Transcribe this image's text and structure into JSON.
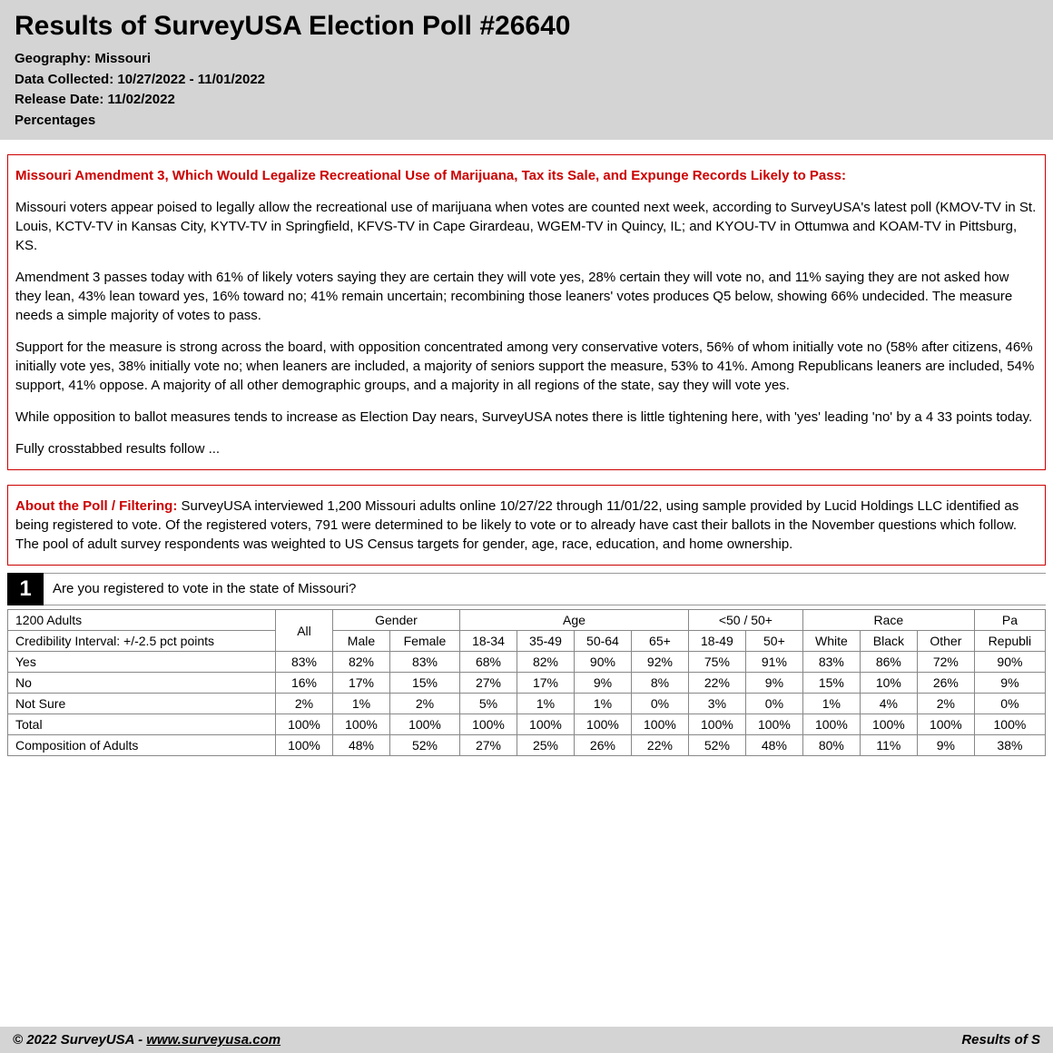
{
  "header": {
    "title": "Results of SurveyUSA Election Poll #26640",
    "geography": "Geography: Missouri",
    "collected": "Data Collected: 10/27/2022 - 11/01/2022",
    "release": "Release Date: 11/02/2022",
    "percentages": "Percentages"
  },
  "summary": {
    "headline": "Missouri Amendment 3, Which Would Legalize Recreational Use of Marijuana, Tax its Sale, and Expunge Records Likely to Pass:",
    "p1": "Missouri voters appear poised to legally allow the recreational use of marijuana when votes are counted next week, according to SurveyUSA's latest poll (KMOV-TV in St. Louis, KCTV-TV in Kansas City, KYTV-TV in Springfield, KFVS-TV in Cape Girardeau, WGEM-TV in Quincy, IL; and KYOU-TV in Ottumwa and KOAM-TV in Pittsburg, KS.",
    "p2": "Amendment 3 passes today with 61% of likely voters saying they are certain they will vote yes, 28% certain they will vote no, and 11% saying they are not asked how they lean, 43% lean toward yes, 16% toward no; 41% remain uncertain; recombining those leaners' votes produces Q5 below, showing 66% undecided. The measure needs a simple majority of votes to pass.",
    "p3": "Support for the measure is strong across the board, with opposition concentrated among very conservative voters, 56% of whom initially vote no (58% after citizens, 46% initially vote yes, 38% initially vote no; when leaners are included, a majority of seniors support the measure, 53% to 41%. Among Republicans leaners are included, 54% support, 41% oppose. A majority of all other demographic groups, and a majority in all regions of the state, say they will vote yes.",
    "p4": "While opposition to ballot measures tends to increase as Election Day nears, SurveyUSA notes there is little tightening here, with 'yes' leading 'no' by a 4 33 points today.",
    "p5": "Fully crosstabbed results follow ..."
  },
  "about": {
    "label": "About the Poll / Filtering: ",
    "text": "SurveyUSA interviewed 1,200 Missouri adults online 10/27/22 through 11/01/22, using sample provided by Lucid Holdings LLC identified as being registered to vote. Of the registered voters, 791 were determined to be likely to vote or to already have cast their ballots in the November questions which follow. The pool of adult survey respondents was weighted to US Census targets for gender, age, race, education, and home ownership."
  },
  "q1": {
    "number": "1",
    "text": "Are you registered to vote in the state of Missouri?",
    "sample": "1200 Adults",
    "ci": "Credibility Interval: +/-2.5 pct points",
    "groupHeaders": {
      "all": "All",
      "gender": "Gender",
      "age": "Age",
      "ageSplit": "<50 / 50+",
      "race": "Race",
      "party": "Pa"
    },
    "subHeaders": [
      "Male",
      "Female",
      "18-34",
      "35-49",
      "50-64",
      "65+",
      "18-49",
      "50+",
      "White",
      "Black",
      "Other",
      "Republi"
    ],
    "rows": [
      {
        "label": "Yes",
        "vals": [
          "83%",
          "82%",
          "83%",
          "68%",
          "82%",
          "90%",
          "92%",
          "75%",
          "91%",
          "83%",
          "86%",
          "72%",
          "90%"
        ]
      },
      {
        "label": "No",
        "vals": [
          "16%",
          "17%",
          "15%",
          "27%",
          "17%",
          "9%",
          "8%",
          "22%",
          "9%",
          "15%",
          "10%",
          "26%",
          "9%"
        ]
      },
      {
        "label": "Not Sure",
        "vals": [
          "2%",
          "1%",
          "2%",
          "5%",
          "1%",
          "1%",
          "0%",
          "3%",
          "0%",
          "1%",
          "4%",
          "2%",
          "0%"
        ]
      },
      {
        "label": "Total",
        "vals": [
          "100%",
          "100%",
          "100%",
          "100%",
          "100%",
          "100%",
          "100%",
          "100%",
          "100%",
          "100%",
          "100%",
          "100%",
          "100%"
        ]
      },
      {
        "label": "Composition of Adults",
        "vals": [
          "100%",
          "48%",
          "52%",
          "27%",
          "25%",
          "26%",
          "22%",
          "52%",
          "48%",
          "80%",
          "11%",
          "9%",
          "38%"
        ]
      }
    ]
  },
  "footer": {
    "copyright": "© 2022 SurveyUSA - ",
    "url": "www.surveyusa.com",
    "right": "Results of S"
  },
  "colors": {
    "headerBg": "#d4d4d4",
    "red": "#cc0000",
    "border": "#888888"
  }
}
